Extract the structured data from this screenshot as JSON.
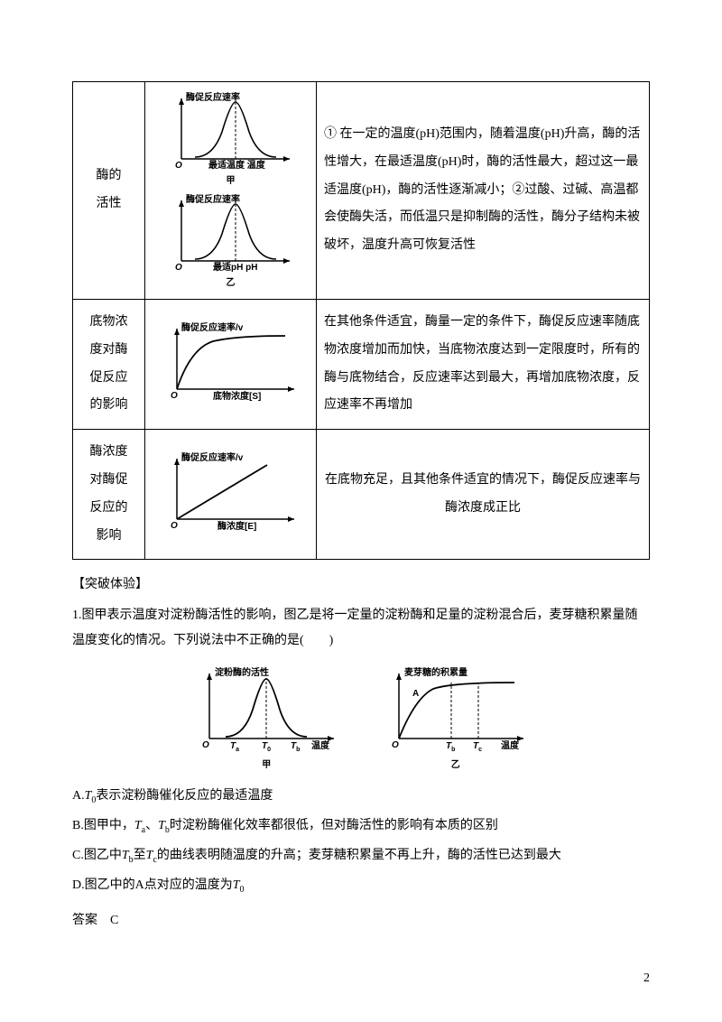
{
  "table": {
    "rows": [
      {
        "col1": "酶的\n活性",
        "graphs": [
          {
            "ylabel": "酶促反应速率",
            "xlabel": "最适温度  温度",
            "caption": "甲",
            "type": "bell",
            "dashed_peak": true
          },
          {
            "ylabel": "酶促反应速率",
            "xlabel": "最适pH  pH",
            "caption": "乙",
            "type": "bell",
            "dashed_peak": true
          }
        ],
        "col3": "① 在一定的温度(pH)范围内，随着温度(pH)升高，酶的活性增大，在最适温度(pH)时，酶的活性最大，超过这一最适温度(pH)，酶的活性逐渐减小；②过酸、过碱、高温都会使酶失活，而低温只是抑制酶的活性，酶分子结构未被破坏，温度升高可恢复活性",
        "col3_align": "left"
      },
      {
        "col1": "底物浓\n度对酶\n促反应\n的影响",
        "graphs": [
          {
            "ylabel": "酶促反应速率/v",
            "xlabel": "底物浓度[S]",
            "caption": "",
            "type": "saturation",
            "dashed_peak": false
          }
        ],
        "col3": "在其他条件适宜，酶量一定的条件下，酶促反应速率随底物浓度增加而加快，当底物浓度达到一定限度时，所有的酶与底物结合，反应速率达到最大，再增加底物浓度，反应速率不再增加",
        "col3_align": "left"
      },
      {
        "col1": "酶浓度\n对酶促\n反应的\n影响",
        "graphs": [
          {
            "ylabel": "酶促反应速率/v",
            "xlabel": "酶浓度[E]",
            "caption": "",
            "type": "linear",
            "dashed_peak": false
          }
        ],
        "col3": "在底物充足，且其他条件适宜的情况下，酶促反应速率与酶浓度成正比",
        "col3_align": "center"
      }
    ]
  },
  "section": {
    "title": "【突破体验】",
    "q_stem": "1.图甲表示温度对淀粉酶活性的影响，图乙是将一定量的淀粉酶和足量的淀粉混合后，麦芽糖积累量随温度变化的情况。下列说法中不正确的是(　　)",
    "graphs": [
      {
        "ylabel": "淀粉酶的活性",
        "xlabel": "温度",
        "caption": "甲",
        "type": "bell3",
        "ticks": [
          "T",
          "a",
          "T",
          "0",
          "T",
          "b"
        ]
      },
      {
        "ylabel": "麦芽糖的积累量",
        "xlabel": "温度",
        "caption": "乙",
        "type": "sat2",
        "mark": "A",
        "ticks": [
          "T",
          "b",
          "T",
          "c"
        ]
      }
    ],
    "options": {
      "A": "A.T₀表示淀粉酶催化反应的最适温度",
      "B": "B.图甲中，Tₐ、T_b时淀粉酶催化效率都很低，但对酶活性的影响有本质的区别",
      "C": "C.图乙中T_b至T_c的曲线表明随温度的升高；麦芽糖积累量不再上升，酶的活性已达到最大",
      "D": "D.图乙中的A点对应的温度为T₀"
    },
    "answer_label": "答案",
    "answer_value": "C"
  },
  "page_number": "2",
  "colors": {
    "line": "#000000",
    "bg": "#ffffff"
  }
}
